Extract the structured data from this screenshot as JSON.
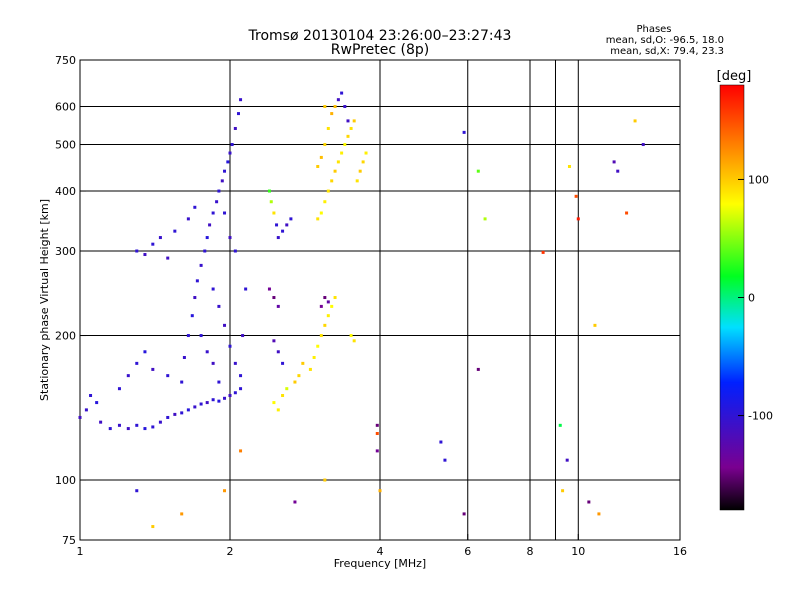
{
  "chart_data": {
    "type": "scatter",
    "title": "Tromsø 20130104 23:26:00–23:27:43",
    "subtitle": "RwPretec (8p)",
    "xlabel": "Frequency [MHz]",
    "ylabel": "Stationary phase Virtual Height [km]",
    "x_scale": "log",
    "y_scale": "log",
    "xlim": [
      1,
      16
    ],
    "ylim": [
      75,
      750
    ],
    "x_ticks": [
      {
        "value": 1,
        "label": "1"
      },
      {
        "value": 2,
        "label": "2"
      },
      {
        "value": 4,
        "label": "4"
      },
      {
        "value": 6,
        "label": "6"
      },
      {
        "value": 8,
        "label": "8"
      },
      {
        "value": 10,
        "label": "10"
      },
      {
        "value": 16,
        "label": "16"
      }
    ],
    "y_ticks": [
      {
        "value": 75,
        "label": "75"
      },
      {
        "value": 100,
        "label": "100"
      },
      {
        "value": 200,
        "label": "200"
      },
      {
        "value": 300,
        "label": "300"
      },
      {
        "value": 400,
        "label": "400"
      },
      {
        "value": 500,
        "label": "500"
      },
      {
        "value": 600,
        "label": "600"
      },
      {
        "value": 750,
        "label": "750"
      }
    ],
    "grid": true,
    "grid_x": [
      2,
      4,
      6,
      8,
      9,
      10
    ],
    "grid_y": [
      100,
      200,
      300,
      400,
      500,
      600
    ],
    "stats": {
      "title": "Phases",
      "line1": "mean, sd,O: -96.5, 18.0",
      "line2": "mean, sd,X:  79.4, 23.3"
    },
    "colorbar": {
      "label": "[deg]",
      "range": [
        -180,
        180
      ],
      "ticks": [
        {
          "value": 100,
          "label": "100"
        },
        {
          "value": 0,
          "label": "0"
        },
        {
          "value": -100,
          "label": "-100"
        }
      ],
      "colormap": "rainbow (black → purple → blue → cyan → green → yellow → orange → red)"
    },
    "series": [
      {
        "points": [
          [
            1.0,
            135,
            -110
          ],
          [
            1.03,
            140,
            -105
          ],
          [
            1.05,
            150,
            -100
          ],
          [
            1.08,
            145,
            -95
          ],
          [
            1.1,
            132,
            -110
          ],
          [
            1.15,
            128,
            -100
          ],
          [
            1.2,
            130,
            -105
          ],
          [
            1.25,
            128,
            -110
          ],
          [
            1.3,
            130,
            -100
          ],
          [
            1.35,
            128,
            -95
          ],
          [
            1.4,
            129,
            -100
          ],
          [
            1.45,
            132,
            -105
          ],
          [
            1.5,
            135,
            -100
          ],
          [
            1.55,
            137,
            -110
          ],
          [
            1.6,
            138,
            -100
          ],
          [
            1.65,
            140,
            -95
          ],
          [
            1.7,
            142,
            -105
          ],
          [
            1.75,
            144,
            -100
          ],
          [
            1.8,
            145,
            -110
          ],
          [
            1.85,
            147,
            -100
          ],
          [
            1.9,
            146,
            -95
          ],
          [
            1.95,
            148,
            -105
          ],
          [
            2.0,
            150,
            -110
          ],
          [
            2.05,
            152,
            -100
          ],
          [
            2.1,
            155,
            -100
          ],
          [
            1.2,
            155,
            -100
          ],
          [
            1.25,
            165,
            -105
          ],
          [
            1.3,
            175,
            -100
          ],
          [
            1.35,
            185,
            -95
          ],
          [
            1.4,
            170,
            -110
          ],
          [
            1.5,
            165,
            -100
          ],
          [
            1.6,
            160,
            -100
          ],
          [
            1.62,
            180,
            -105
          ],
          [
            1.65,
            200,
            -100
          ],
          [
            1.68,
            220,
            -95
          ],
          [
            1.7,
            240,
            -110
          ],
          [
            1.72,
            260,
            -100
          ],
          [
            1.75,
            280,
            -105
          ],
          [
            1.78,
            300,
            -100
          ],
          [
            1.8,
            320,
            -95
          ],
          [
            1.82,
            340,
            -110
          ],
          [
            1.85,
            360,
            -100
          ],
          [
            1.88,
            380,
            -105
          ],
          [
            1.9,
            400,
            -100
          ],
          [
            1.93,
            420,
            -110
          ],
          [
            1.95,
            440,
            -100
          ],
          [
            1.98,
            460,
            -95
          ],
          [
            2.0,
            480,
            -105
          ],
          [
            2.02,
            500,
            -100
          ],
          [
            2.05,
            540,
            -110
          ],
          [
            2.08,
            580,
            -100
          ],
          [
            2.1,
            620,
            -105
          ],
          [
            1.95,
            360,
            -100
          ],
          [
            2.0,
            320,
            -110
          ],
          [
            2.05,
            300,
            -100
          ],
          [
            1.85,
            250,
            -100
          ],
          [
            1.9,
            230,
            -105
          ],
          [
            1.95,
            210,
            -110
          ],
          [
            2.0,
            190,
            -100
          ],
          [
            2.05,
            175,
            -105
          ],
          [
            2.1,
            165,
            -100
          ],
          [
            2.12,
            200,
            -110
          ],
          [
            2.15,
            250,
            -100
          ],
          [
            1.75,
            200,
            -100
          ],
          [
            1.8,
            185,
            -105
          ],
          [
            1.85,
            175,
            -110
          ],
          [
            1.9,
            160,
            -100
          ],
          [
            1.4,
            310,
            -100
          ],
          [
            1.45,
            320,
            -105
          ],
          [
            1.5,
            290,
            -110
          ],
          [
            1.55,
            330,
            -100
          ],
          [
            1.3,
            300,
            -100
          ],
          [
            1.35,
            295,
            -110
          ],
          [
            1.65,
            350,
            -105
          ],
          [
            1.7,
            370,
            -100
          ],
          [
            2.4,
            400,
            30
          ],
          [
            2.42,
            380,
            60
          ],
          [
            2.45,
            360,
            90
          ],
          [
            2.48,
            340,
            -100
          ],
          [
            2.5,
            320,
            -105
          ],
          [
            2.55,
            330,
            -100
          ],
          [
            2.6,
            340,
            -110
          ],
          [
            2.65,
            350,
            -100
          ],
          [
            2.4,
            250,
            -140
          ],
          [
            2.45,
            240,
            -150
          ],
          [
            2.5,
            230,
            -130
          ],
          [
            2.45,
            195,
            -120
          ],
          [
            2.5,
            185,
            -110
          ],
          [
            2.55,
            175,
            -100
          ],
          [
            2.45,
            145,
            80
          ],
          [
            2.5,
            140,
            85
          ],
          [
            2.55,
            150,
            90
          ],
          [
            2.6,
            155,
            70
          ],
          [
            2.7,
            160,
            100
          ],
          [
            2.75,
            165,
            95
          ],
          [
            2.8,
            175,
            100
          ],
          [
            2.9,
            170,
            90
          ],
          [
            2.95,
            180,
            85
          ],
          [
            3.0,
            190,
            80
          ],
          [
            3.05,
            200,
            90
          ],
          [
            3.1,
            210,
            95
          ],
          [
            3.15,
            220,
            85
          ],
          [
            3.2,
            230,
            80
          ],
          [
            3.25,
            240,
            90
          ],
          [
            3.05,
            230,
            -140
          ],
          [
            3.1,
            240,
            -150
          ],
          [
            3.15,
            235,
            -130
          ],
          [
            3.0,
            350,
            90
          ],
          [
            3.05,
            360,
            80
          ],
          [
            3.1,
            380,
            85
          ],
          [
            3.15,
            400,
            90
          ],
          [
            3.2,
            420,
            95
          ],
          [
            3.25,
            440,
            100
          ],
          [
            3.3,
            460,
            90
          ],
          [
            3.35,
            480,
            85
          ],
          [
            3.4,
            500,
            80
          ],
          [
            3.45,
            520,
            95
          ],
          [
            3.5,
            540,
            90
          ],
          [
            3.55,
            560,
            100
          ],
          [
            3.0,
            450,
            100
          ],
          [
            3.05,
            470,
            105
          ],
          [
            3.1,
            500,
            95
          ],
          [
            3.15,
            540,
            90
          ],
          [
            3.2,
            580,
            110
          ],
          [
            3.25,
            600,
            105
          ],
          [
            3.3,
            620,
            -110
          ],
          [
            3.35,
            640,
            -100
          ],
          [
            3.4,
            600,
            -105
          ],
          [
            3.45,
            560,
            -110
          ],
          [
            3.6,
            420,
            90
          ],
          [
            3.65,
            440,
            100
          ],
          [
            3.7,
            460,
            95
          ],
          [
            3.75,
            480,
            85
          ],
          [
            3.5,
            200,
            80
          ],
          [
            3.55,
            195,
            90
          ],
          [
            5.9,
            530,
            -100
          ],
          [
            6.3,
            440,
            40
          ],
          [
            6.5,
            350,
            60
          ],
          [
            3.1,
            100,
            100
          ],
          [
            1.3,
            95,
            -100
          ],
          [
            1.4,
            80,
            100
          ],
          [
            1.6,
            85,
            120
          ],
          [
            1.95,
            95,
            120
          ],
          [
            2.1,
            115,
            130
          ],
          [
            2.7,
            90,
            -140
          ],
          [
            3.95,
            130,
            -150
          ],
          [
            3.95,
            125,
            150
          ],
          [
            3.95,
            115,
            -140
          ],
          [
            4.0,
            95,
            110
          ],
          [
            5.3,
            120,
            -100
          ],
          [
            5.4,
            110,
            -100
          ],
          [
            5.9,
            85,
            -150
          ],
          [
            6.3,
            170,
            -150
          ],
          [
            8.5,
            298,
            160
          ],
          [
            9.2,
            130,
            10
          ],
          [
            9.3,
            95,
            100
          ],
          [
            9.5,
            110,
            -110
          ],
          [
            9.6,
            450,
            90
          ],
          [
            9.9,
            390,
            150
          ],
          [
            10.0,
            350,
            170
          ],
          [
            10.5,
            90,
            -150
          ],
          [
            11.0,
            85,
            120
          ],
          [
            10.8,
            210,
            100
          ],
          [
            11.8,
            460,
            -120
          ],
          [
            12.0,
            440,
            -110
          ],
          [
            12.5,
            360,
            150
          ],
          [
            13.0,
            560,
            100
          ],
          [
            13.5,
            500,
            -110
          ],
          [
            3.1,
            600,
            100
          ]
        ]
      }
    ]
  }
}
